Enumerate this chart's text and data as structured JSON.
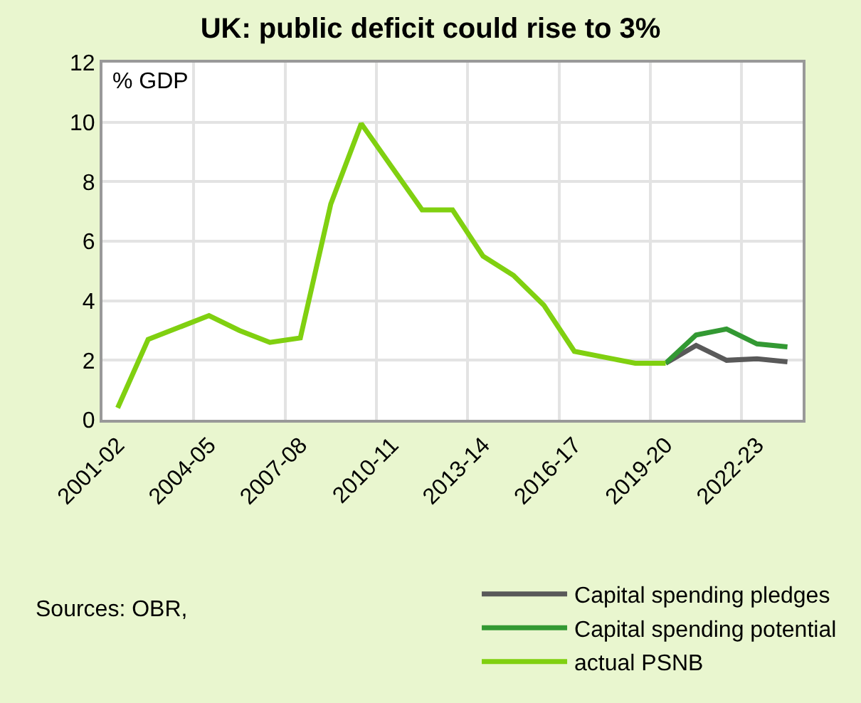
{
  "chart_data": {
    "type": "line",
    "title": "UK: public deficit could rise to 3%",
    "ylabel": "% GDP",
    "categories": [
      "2001-02",
      null,
      null,
      "2004-05",
      null,
      null,
      "2007-08",
      null,
      null,
      "2010-11",
      null,
      null,
      "2013-14",
      null,
      null,
      "2016-17",
      null,
      null,
      "2019-20",
      null,
      null,
      "2022-23",
      null
    ],
    "series": [
      {
        "name": "Capital spending pledges",
        "color": "#595959",
        "values": [
          null,
          null,
          null,
          null,
          null,
          null,
          null,
          null,
          null,
          null,
          null,
          null,
          null,
          null,
          null,
          null,
          null,
          null,
          1.9,
          2.5,
          2.0,
          2.05,
          1.95
        ]
      },
      {
        "name": "Capital spending potential",
        "color": "#339933",
        "values": [
          null,
          null,
          null,
          null,
          null,
          null,
          null,
          null,
          null,
          null,
          null,
          null,
          null,
          null,
          null,
          null,
          null,
          null,
          1.9,
          2.85,
          3.05,
          2.55,
          2.45
        ]
      },
      {
        "name": "actual PSNB",
        "color": "#80d010",
        "values": [
          0.4,
          2.7,
          3.1,
          3.5,
          3.0,
          2.6,
          2.75,
          7.25,
          9.95,
          8.5,
          7.05,
          7.05,
          5.5,
          4.85,
          3.85,
          2.3,
          2.1,
          1.9,
          1.9,
          null,
          null,
          null,
          null
        ]
      }
    ],
    "ylim": [
      0,
      12
    ],
    "yticks": [
      0,
      2,
      4,
      6,
      8,
      10,
      12
    ],
    "grid": true,
    "legend": "bottom right",
    "line_style": "solid",
    "annotations": [
      "Sources: OBR,"
    ]
  }
}
